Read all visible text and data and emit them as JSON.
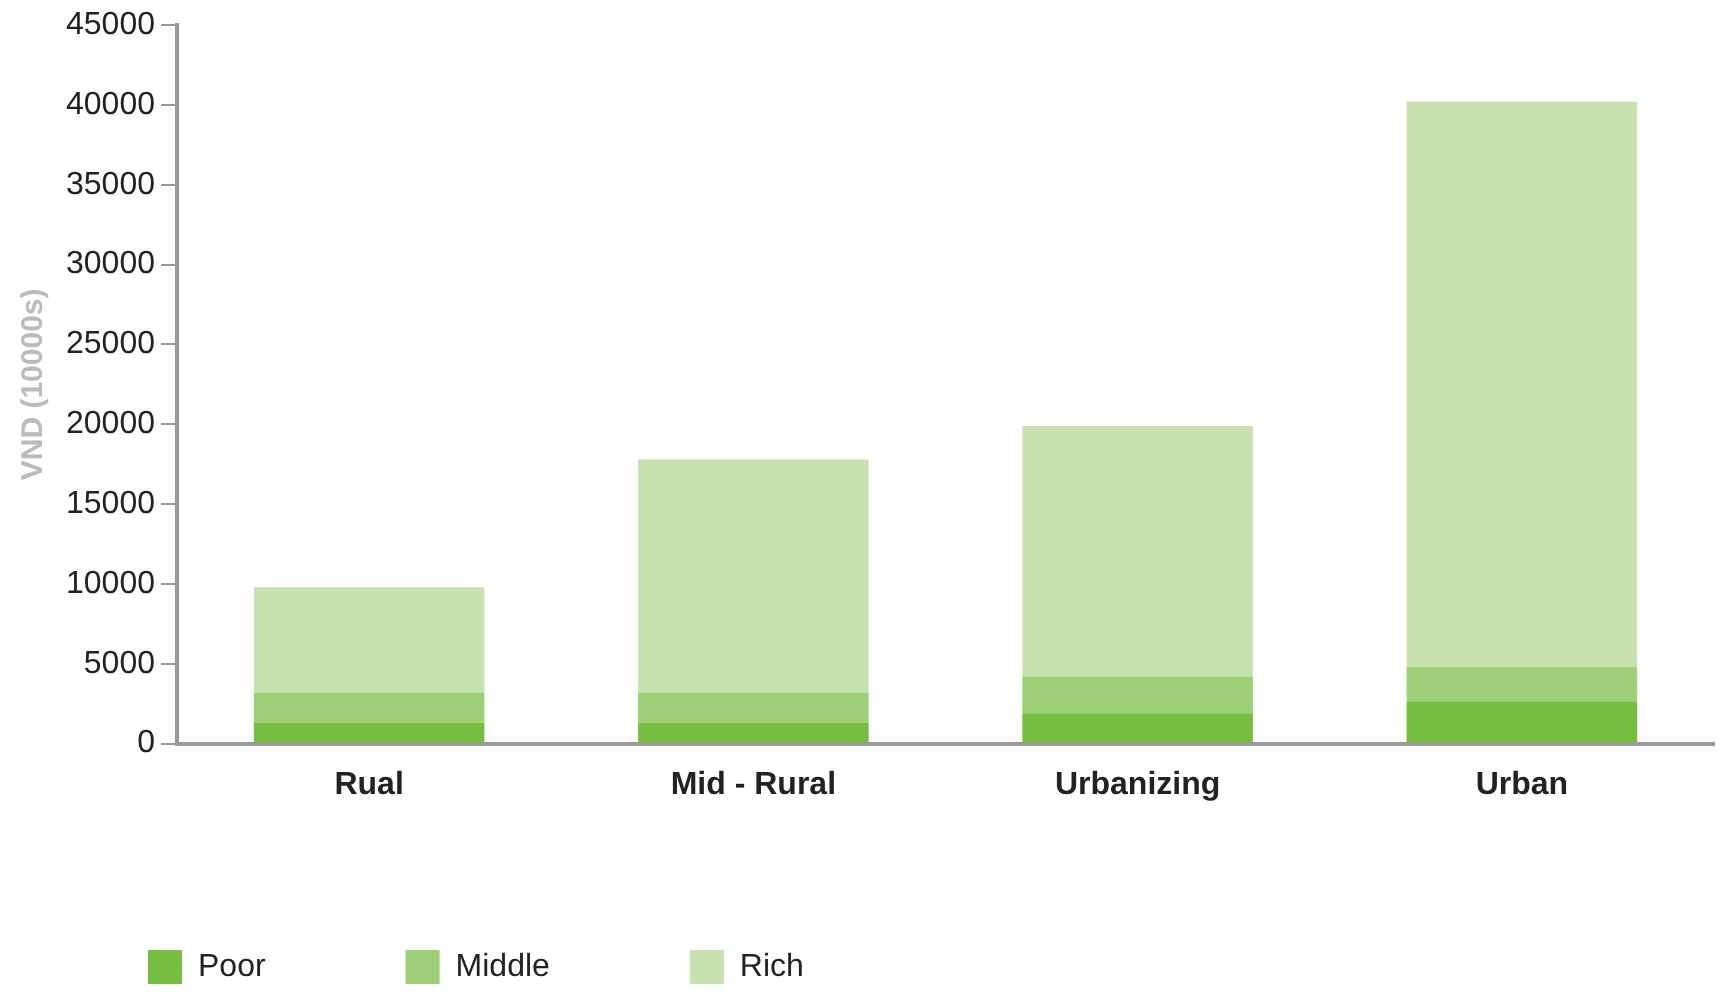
{
  "chart_data": {
    "type": "bar",
    "stacked": true,
    "ylabel": "VND (10000s)",
    "categories": [
      "Rual",
      "Mid - Rural",
      "Urbanizing",
      "Urban"
    ],
    "series": [
      {
        "name": "Poor",
        "color": "#76bf43",
        "values": [
          1300,
          1300,
          1900,
          2600
        ]
      },
      {
        "name": "Middle",
        "color": "#9fce78",
        "values": [
          1900,
          1900,
          2300,
          2200
        ]
      },
      {
        "name": "Rich",
        "color": "#c7e1af",
        "values": [
          6600,
          14600,
          15700,
          35400
        ]
      }
    ],
    "ylim": [
      0,
      45000
    ],
    "yticks": [
      0,
      5000,
      10000,
      15000,
      20000,
      25000,
      30000,
      35000,
      40000,
      45000
    ],
    "grid": false,
    "legend": "bottom left"
  }
}
